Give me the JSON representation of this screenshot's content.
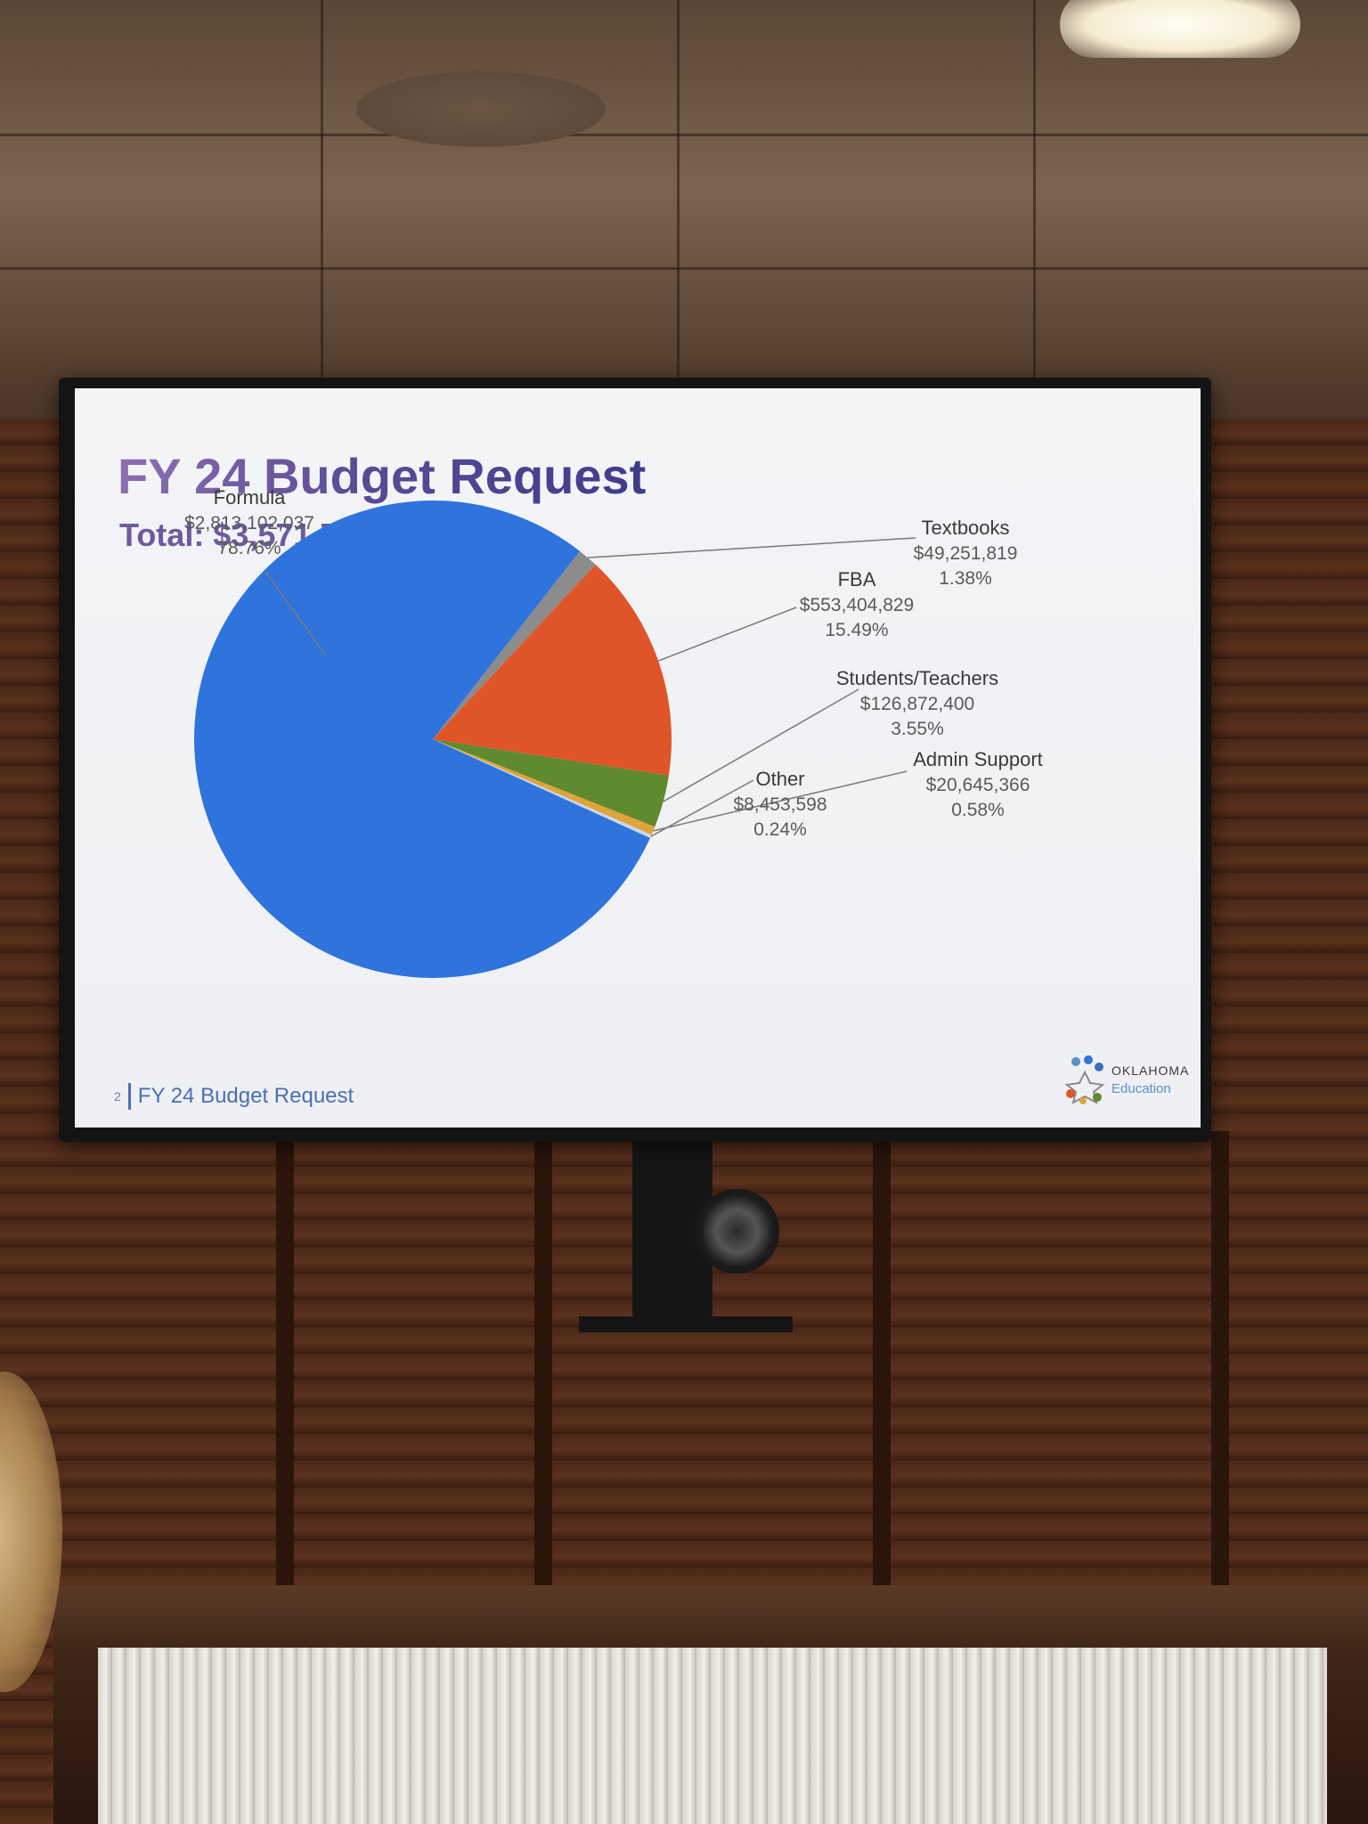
{
  "slide": {
    "title": "FY 24 Budget Request",
    "subtitle": "Total: $3,571,730,049",
    "footer_page": "2",
    "footer_text": "FY 24 Budget Request",
    "logo_line1": "OKLAHOMA",
    "logo_line2": "Education"
  },
  "chart_data": {
    "type": "pie",
    "title": "FY 24 Budget Request",
    "subtitle": "Total: $3,571,730,049",
    "slices": [
      {
        "name": "Formula",
        "value": 2813102037,
        "value_label": "$2,813,102,037",
        "percent_label": "78.76%",
        "color": "#2f73dc"
      },
      {
        "name": "Textbooks",
        "value": 49251819,
        "value_label": "$49,251,819",
        "percent_label": "1.38%",
        "color": "#8c8c8c"
      },
      {
        "name": "FBA",
        "value": 553404829,
        "value_label": "$553,404,829",
        "percent_label": "15.49%",
        "color": "#e0542a"
      },
      {
        "name": "Students/Teachers",
        "value": 126872400,
        "value_label": "$126,872,400",
        "percent_label": "3.55%",
        "color": "#5f8a2e"
      },
      {
        "name": "Admin Support",
        "value": 20645366,
        "value_label": "$20,645,366",
        "percent_label": "0.58%",
        "color": "#e0a43a"
      },
      {
        "name": "Other",
        "value": 8453598,
        "value_label": "$8,453,598",
        "percent_label": "0.24%",
        "color": "#c9d8ef"
      }
    ]
  }
}
